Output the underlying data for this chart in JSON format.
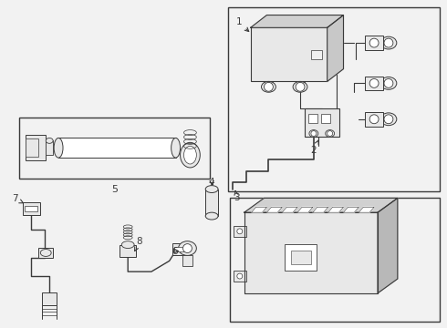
{
  "bg_color": "#f2f2f2",
  "line_color": "#3a3a3a",
  "white": "#ffffff",
  "light_gray": "#e8e8e8",
  "mid_gray": "#d0d0d0"
}
